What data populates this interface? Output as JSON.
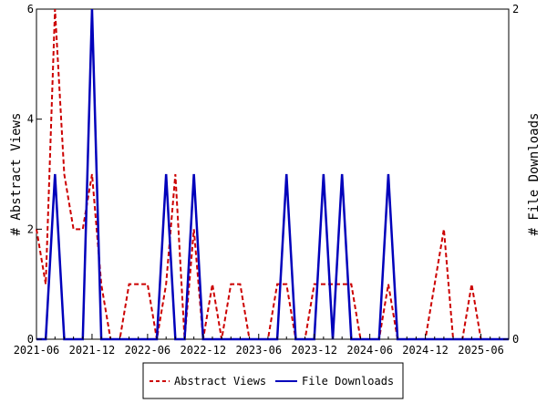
{
  "chart_data": {
    "type": "line",
    "x": [
      "2021-06",
      "2021-07",
      "2021-08",
      "2021-09",
      "2021-10",
      "2021-11",
      "2021-12",
      "2022-01",
      "2022-02",
      "2022-03",
      "2022-04",
      "2022-05",
      "2022-06",
      "2022-07",
      "2022-08",
      "2022-09",
      "2022-10",
      "2022-11",
      "2022-12",
      "2023-01",
      "2023-02",
      "2023-03",
      "2023-04",
      "2023-05",
      "2023-06",
      "2023-07",
      "2023-08",
      "2023-09",
      "2023-10",
      "2023-11",
      "2023-12",
      "2024-01",
      "2024-02",
      "2024-03",
      "2024-04",
      "2024-05",
      "2024-06",
      "2024-07",
      "2024-08",
      "2024-09",
      "2024-10",
      "2024-11",
      "2024-12",
      "2025-01",
      "2025-02",
      "2025-03",
      "2025-04",
      "2025-05",
      "2025-06",
      "2025-07",
      "2025-08",
      "2025-09"
    ],
    "x_tick_labels": [
      "2021-06",
      "2021-12",
      "2022-06",
      "2022-12",
      "2023-06",
      "2023-12",
      "2024-06",
      "2024-12",
      "2025-06"
    ],
    "series": [
      {
        "name": "Abstract Views",
        "axis": "left",
        "color": "#cc0000",
        "style": "dashed",
        "values": [
          2,
          1,
          6,
          3,
          2,
          2,
          3,
          1,
          0,
          0,
          1,
          1,
          1,
          0,
          1,
          3,
          0,
          2,
          0,
          1,
          0,
          1,
          1,
          0,
          0,
          0,
          1,
          1,
          0,
          0,
          1,
          1,
          1,
          1,
          1,
          0,
          0,
          0,
          1,
          0,
          0,
          0,
          0,
          1,
          2,
          0,
          0,
          1,
          0,
          0,
          0,
          0
        ]
      },
      {
        "name": "File Downloads",
        "axis": "right",
        "color": "#0000bb",
        "style": "solid",
        "values": [
          0,
          0,
          1,
          0,
          0,
          0,
          2,
          0,
          0,
          0,
          0,
          0,
          0,
          0,
          1,
          0,
          0,
          1,
          0,
          0,
          0,
          0,
          0,
          0,
          0,
          0,
          0,
          1,
          0,
          0,
          0,
          1,
          0,
          1,
          0,
          0,
          0,
          0,
          1,
          0,
          0,
          0,
          0,
          0,
          0,
          0,
          0,
          0,
          0,
          0,
          0,
          0
        ]
      }
    ],
    "ylabel": "# Abstract Views",
    "y2label": "# File Downloads",
    "ylim": [
      0,
      6
    ],
    "y2lim": [
      0,
      2
    ],
    "y_tick_labels": [
      "0",
      "2",
      "4",
      "6"
    ],
    "y2_tick_labels": [
      "0",
      "2"
    ],
    "legend_placement": "bottom-center",
    "grid": false
  }
}
